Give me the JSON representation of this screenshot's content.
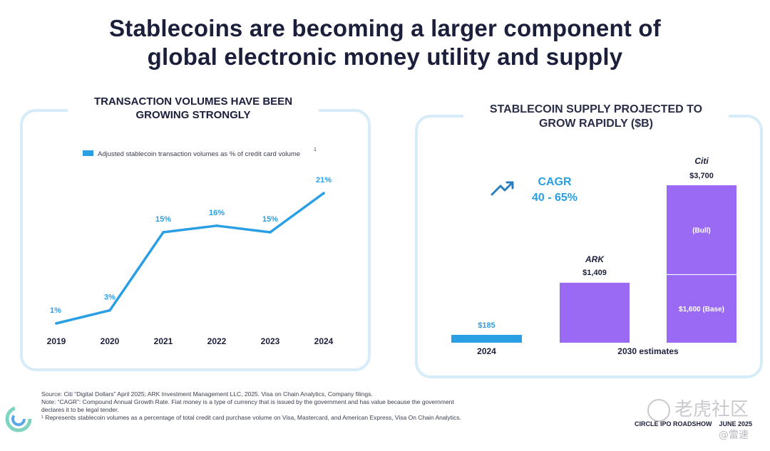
{
  "header": {
    "title_line1": "Stablecoins are becoming a larger component of",
    "title_line2": "global electronic money utility and supply"
  },
  "left_panel": {
    "title_line1": "TRANSACTION VOLUMES HAVE BEEN",
    "title_line2": "GROWING STRONGLY"
  },
  "right_panel": {
    "title_line1": "STABLECOIN SUPPLY PROJECTED TO",
    "title_line2": "GROW RAPIDLY ($B)",
    "cagr_label": "CAGR",
    "cagr_value": "40 - 65%"
  },
  "chart_data": [
    {
      "type": "line",
      "legend": "Adjusted stablecoin transaction volumes as % of credit card volume",
      "legend_superscript": "1",
      "legend_placement": "top",
      "x": [
        "2019",
        "2020",
        "2021",
        "2022",
        "2023",
        "2024"
      ],
      "series": [
        {
          "values": [
            1,
            3,
            15,
            16,
            15,
            21
          ],
          "labels": [
            "1%",
            "3%",
            "15%",
            "16%",
            "15%",
            "21%"
          ],
          "color": "#2a9fe3"
        }
      ],
      "ylim": [
        0,
        22
      ],
      "grid": false
    },
    {
      "type": "bar",
      "categories": [
        "2024",
        "ARK",
        "Citi"
      ],
      "x_group_labels": [
        "2024",
        "2030 estimates"
      ],
      "values": [
        185,
        1409,
        3700
      ],
      "value_labels": [
        "$185",
        "$1,409",
        "$3,700"
      ],
      "bar_names": [
        "",
        "ARK",
        "Citi"
      ],
      "stacks": {
        "Citi": [
          {
            "label": "$1,600 (Base)",
            "value": 1600
          },
          {
            "label": "(Bull)",
            "value": 2100
          }
        ]
      },
      "colors": {
        "2024": "#2a9fe3",
        "projection": "#9b6af5"
      },
      "ylim": [
        0,
        3700
      ],
      "grid": false
    }
  ],
  "footer": {
    "notes": [
      "Source: Citi “Digital Dollars” April 2025; ARK Investment Management LLC, 2025. Visa on Chain Analytics, Company filings.",
      "Note: “CAGR”: Compound Annual Growth Rate. Fiat money is a type of currency that is issued by the government and has value because the government",
      "declares it to be legal tender.",
      "¹ Represents stablecoin volumes as a percentage of total credit card purchase volume on Visa, Mastercard, and American Express, Visa On Chain Analytics."
    ],
    "roadshow": "CIRCLE IPO ROADSHOW",
    "date": "JUNE 2025",
    "watermark": "老虎社区",
    "watermark_user": "@雷速"
  },
  "colors": {
    "accent_blue": "#2a9fe3",
    "purple": "#9b6af5",
    "panel_border": "#d6ecf8",
    "title_navy": "#1b1f3b"
  },
  "icons": [
    "trend-up-icon",
    "circle-logo-icon",
    "tiger-watermark-icon"
  ]
}
